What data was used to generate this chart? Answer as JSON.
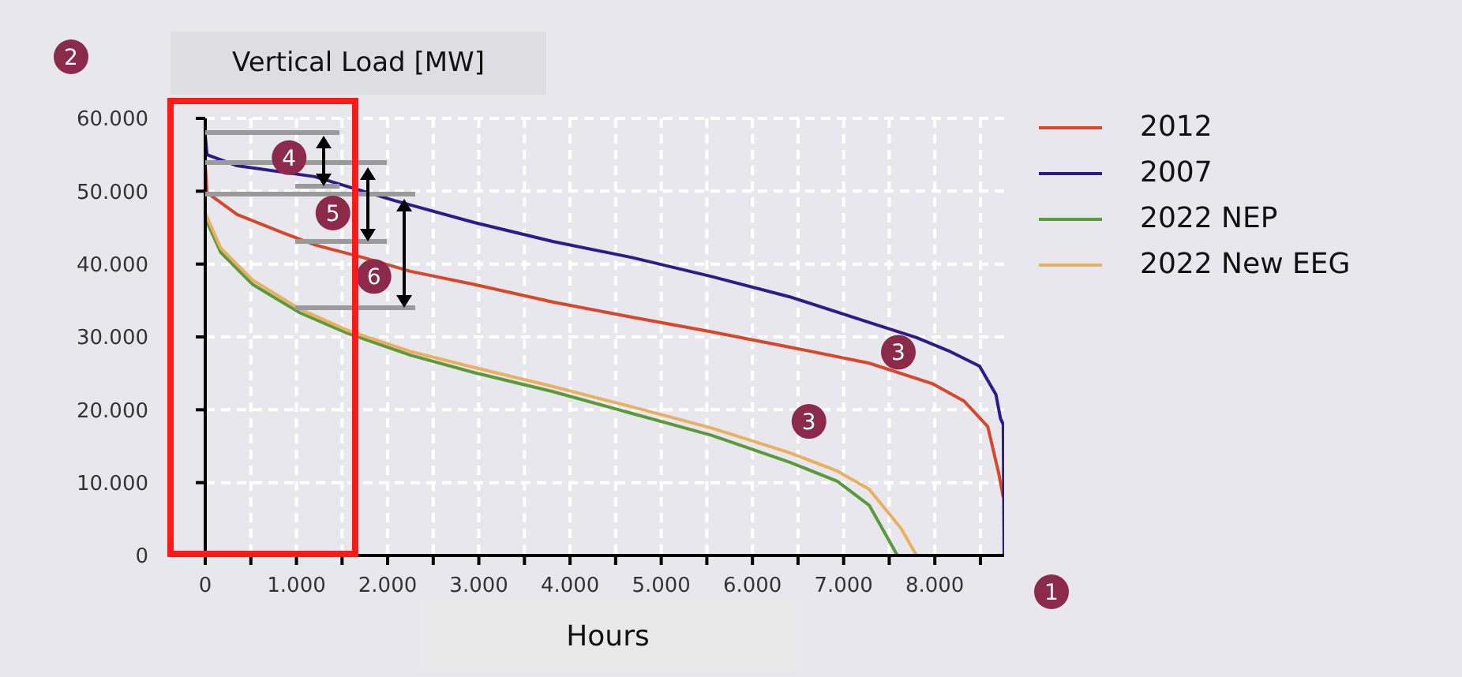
{
  "chart_data": {
    "type": "line",
    "ylabel": "Vertical Load [MW]",
    "xlabel": "Hours",
    "xlim": [
      0,
      8760
    ],
    "xticks": [
      {
        "value": 0,
        "label": "0"
      },
      {
        "value": 500,
        "label": null
      },
      {
        "value": 1000,
        "label": "1.000"
      },
      {
        "value": 1500,
        "label": null
      },
      {
        "value": 2000,
        "label": "2.000"
      },
      {
        "value": 2500,
        "label": null
      },
      {
        "value": 3000,
        "label": "3.000"
      },
      {
        "value": 3500,
        "label": null
      },
      {
        "value": 4000,
        "label": "4.000"
      },
      {
        "value": 4500,
        "label": null
      },
      {
        "value": 5000,
        "label": "5.000"
      },
      {
        "value": 5500,
        "label": null
      },
      {
        "value": 6000,
        "label": "6.000"
      },
      {
        "value": 6500,
        "label": null
      },
      {
        "value": 7000,
        "label": "7.000"
      },
      {
        "value": 7500,
        "label": null
      },
      {
        "value": 8000,
        "label": "8.000"
      },
      {
        "value": 8500,
        "label": null
      }
    ],
    "ylim": [
      0,
      60000
    ],
    "yticks": [
      {
        "value": 0,
        "label": "0"
      },
      {
        "value": 10000,
        "label": "10.000"
      },
      {
        "value": 20000,
        "label": "20.000"
      },
      {
        "value": 30000,
        "label": "30.000"
      },
      {
        "value": 40000,
        "label": "40.000"
      },
      {
        "value": 50000,
        "label": "50.000"
      },
      {
        "value": 60000,
        "label": "60.000"
      }
    ],
    "grid": true,
    "legend": "right",
    "marker": "none",
    "line_style": "solid",
    "series": [
      {
        "name": "2012",
        "color": "#d9472b",
        "x": [
          0,
          20,
          350,
          870,
          1210,
          1730,
          2250,
          2950,
          3810,
          4680,
          5550,
          6410,
          7280,
          7970,
          8320,
          8580,
          8700,
          8750
        ],
        "values": [
          53500,
          49800,
          46800,
          44200,
          42600,
          40900,
          39000,
          37200,
          34800,
          32700,
          30700,
          28600,
          26400,
          23600,
          21200,
          17700,
          11300,
          8000
        ]
      },
      {
        "name": "2007",
        "color": "#2e1a8c",
        "x": [
          0,
          20,
          350,
          1200,
          2080,
          2950,
          3810,
          4680,
          5550,
          6410,
          7280,
          7800,
          8150,
          8490,
          8670,
          8720,
          8750,
          8760
        ],
        "values": [
          57600,
          55000,
          53500,
          52000,
          48700,
          45700,
          43100,
          40900,
          38300,
          35500,
          32000,
          29900,
          28100,
          26000,
          22100,
          18800,
          18000,
          0
        ]
      },
      {
        "name": "2022 NEP",
        "color": "#5a9a3a",
        "x": [
          0,
          170,
          520,
          1040,
          1560,
          2250,
          2950,
          3810,
          4680,
          5550,
          6410,
          6930,
          7280,
          7590
        ],
        "values": [
          46300,
          41600,
          37200,
          33300,
          30500,
          27500,
          25100,
          22500,
          19500,
          16500,
          12800,
          10200,
          6900,
          0
        ]
      },
      {
        "name": "2022 New EEG",
        "color": "#e8b060",
        "x": [
          0,
          170,
          520,
          1040,
          1560,
          2250,
          2950,
          3810,
          4680,
          5550,
          6410,
          6930,
          7280,
          7630,
          7800
        ],
        "values": [
          47000,
          42200,
          37800,
          33800,
          30900,
          28000,
          25800,
          23200,
          20400,
          17500,
          14100,
          11600,
          9100,
          3700,
          0
        ]
      }
    ],
    "annotations": [
      "1",
      "2",
      {
        "text": "3",
        "x": 7600,
        "y": 27900
      },
      {
        "text": "3",
        "x": 6620,
        "y": 18400
      },
      {
        "text": "4",
        "x": 920,
        "y": 54600
      },
      {
        "text": "5",
        "x": 1400,
        "y": 47000
      },
      {
        "text": "6",
        "x": 1850,
        "y": 38300
      }
    ]
  }
}
